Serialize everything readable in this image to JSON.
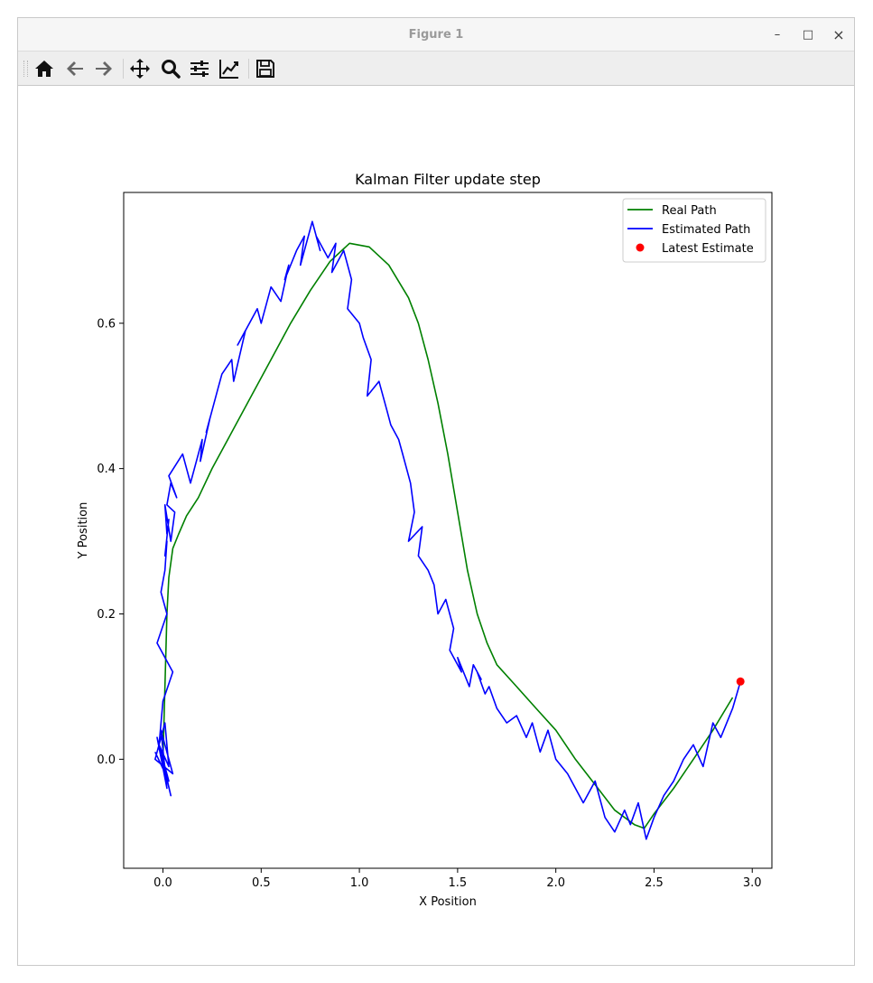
{
  "window": {
    "title": "Figure 1",
    "minimize_glyph": "–",
    "maximize_glyph": "□",
    "close_glyph": "×"
  },
  "toolbar": {
    "buttons": [
      "home-icon",
      "back-arrow-icon",
      "forward-arrow-icon",
      "pan-icon",
      "zoom-icon",
      "subplots-config-icon",
      "edit-axes-icon",
      "save-icon"
    ]
  },
  "chart_data": {
    "type": "line",
    "title": "Kalman Filter update step",
    "xlabel": "X Position",
    "ylabel": "Y Position",
    "xlim": [
      -0.2,
      3.1
    ],
    "ylim": [
      -0.15,
      0.78
    ],
    "xticks": [
      0.0,
      0.5,
      1.0,
      1.5,
      2.0,
      2.5,
      3.0
    ],
    "xtick_labels": [
      "0.0",
      "0.5",
      "1.0",
      "1.5",
      "2.0",
      "2.5",
      "3.0"
    ],
    "yticks": [
      0.0,
      0.2,
      0.4,
      0.6
    ],
    "ytick_labels": [
      "0.0",
      "0.2",
      "0.4",
      "0.6"
    ],
    "grid": false,
    "legend_position": "top-right",
    "series": [
      {
        "name": "Real Path",
        "kind": "line",
        "color": "#008000",
        "x": [
          0.0,
          0.005,
          0.01,
          0.015,
          0.02,
          0.03,
          0.05,
          0.08,
          0.12,
          0.18,
          0.25,
          0.35,
          0.45,
          0.55,
          0.65,
          0.75,
          0.85,
          0.95,
          1.05,
          1.15,
          1.25,
          1.3,
          1.35,
          1.4,
          1.45,
          1.5,
          1.55,
          1.6,
          1.65,
          1.7,
          1.8,
          1.9,
          2.0,
          2.1,
          2.2,
          2.3,
          2.4,
          2.45,
          2.5,
          2.6,
          2.7,
          2.8,
          2.9
        ],
        "y": [
          0.0,
          0.05,
          0.1,
          0.15,
          0.2,
          0.25,
          0.29,
          0.31,
          0.335,
          0.36,
          0.4,
          0.45,
          0.5,
          0.55,
          0.6,
          0.645,
          0.685,
          0.71,
          0.705,
          0.68,
          0.635,
          0.6,
          0.55,
          0.49,
          0.42,
          0.34,
          0.26,
          0.2,
          0.16,
          0.13,
          0.1,
          0.07,
          0.04,
          0.0,
          -0.035,
          -0.07,
          -0.09,
          -0.095,
          -0.075,
          -0.04,
          0.0,
          0.04,
          0.085
        ]
      },
      {
        "name": "Estimated Path",
        "kind": "line",
        "color": "#0000ff",
        "x": [
          -0.04,
          0.03,
          -0.02,
          0.04,
          -0.03,
          0.02,
          -0.01,
          0.05,
          -0.04,
          0.01,
          0.03,
          -0.02,
          0.0,
          0.05,
          -0.03,
          0.02,
          -0.01,
          0.01,
          0.02,
          0.01,
          0.03,
          0.02,
          0.01,
          0.04,
          0.06,
          0.02,
          0.04,
          0.07,
          0.03,
          0.1,
          0.14,
          0.2,
          0.19,
          0.24,
          0.22,
          0.28,
          0.3,
          0.35,
          0.36,
          0.42,
          0.38,
          0.48,
          0.5,
          0.55,
          0.6,
          0.64,
          0.62,
          0.68,
          0.72,
          0.7,
          0.76,
          0.8,
          0.78,
          0.84,
          0.88,
          0.86,
          0.92,
          0.96,
          0.94,
          1.0,
          1.02,
          1.06,
          1.04,
          1.1,
          1.14,
          1.16,
          1.2,
          1.22,
          1.26,
          1.28,
          1.25,
          1.32,
          1.3,
          1.35,
          1.38,
          1.4,
          1.44,
          1.48,
          1.46,
          1.52,
          1.5,
          1.56,
          1.58,
          1.62,
          1.6,
          1.64,
          1.66,
          1.7,
          1.75,
          1.8,
          1.85,
          1.88,
          1.92,
          1.96,
          2.0,
          2.06,
          2.1,
          2.14,
          2.2,
          2.25,
          2.3,
          2.35,
          2.38,
          2.42,
          2.46,
          2.5,
          2.55,
          2.6,
          2.65,
          2.7,
          2.75,
          2.8,
          2.84,
          2.9,
          2.94
        ],
        "y": [
          0.01,
          -0.03,
          0.02,
          -0.05,
          0.03,
          -0.04,
          0.04,
          -0.02,
          0.0,
          0.05,
          -0.01,
          0.02,
          0.08,
          0.12,
          0.16,
          0.2,
          0.23,
          0.26,
          0.3,
          0.28,
          0.33,
          0.31,
          0.35,
          0.3,
          0.34,
          0.35,
          0.38,
          0.36,
          0.39,
          0.42,
          0.38,
          0.44,
          0.41,
          0.47,
          0.45,
          0.51,
          0.53,
          0.55,
          0.52,
          0.59,
          0.57,
          0.62,
          0.6,
          0.65,
          0.63,
          0.68,
          0.66,
          0.7,
          0.72,
          0.68,
          0.74,
          0.7,
          0.72,
          0.69,
          0.71,
          0.67,
          0.7,
          0.66,
          0.62,
          0.6,
          0.58,
          0.55,
          0.5,
          0.52,
          0.48,
          0.46,
          0.44,
          0.42,
          0.38,
          0.34,
          0.3,
          0.32,
          0.28,
          0.26,
          0.24,
          0.2,
          0.22,
          0.18,
          0.15,
          0.12,
          0.14,
          0.1,
          0.13,
          0.11,
          0.12,
          0.09,
          0.1,
          0.07,
          0.05,
          0.06,
          0.03,
          0.05,
          0.01,
          0.04,
          0.0,
          -0.02,
          -0.04,
          -0.06,
          -0.03,
          -0.08,
          -0.1,
          -0.07,
          -0.09,
          -0.06,
          -0.11,
          -0.08,
          -0.05,
          -0.03,
          0.0,
          0.02,
          -0.01,
          0.05,
          0.03,
          0.07,
          0.107
        ]
      },
      {
        "name": "Latest Estimate",
        "kind": "scatter",
        "color": "#ff0000",
        "x": [
          2.94
        ],
        "y": [
          0.107
        ]
      }
    ]
  }
}
